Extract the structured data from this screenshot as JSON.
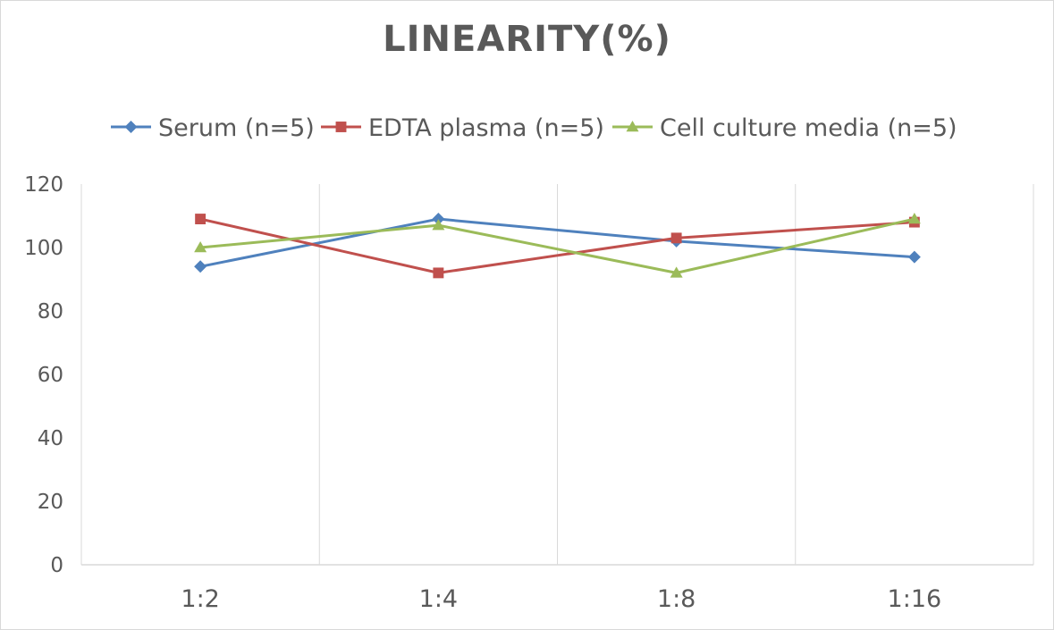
{
  "chart_data": {
    "type": "line",
    "title": "LINEARITY(%)",
    "xlabel": "",
    "ylabel": "",
    "categories": [
      "1:2",
      "1:4",
      "1:8",
      "1:16"
    ],
    "ylim": [
      0,
      120
    ],
    "yticks": [
      0,
      20,
      40,
      60,
      80,
      100,
      120
    ],
    "grid": "vertical",
    "legend_position": "top",
    "series": [
      {
        "name": "Serum (n=5)",
        "values": [
          94,
          109,
          102,
          97
        ],
        "color": "#4f81bd",
        "marker": "diamond"
      },
      {
        "name": "EDTA plasma (n=5)",
        "values": [
          109,
          92,
          103,
          108
        ],
        "color": "#c0504d",
        "marker": "square"
      },
      {
        "name": "Cell culture media (n=5)",
        "values": [
          100,
          107,
          92,
          109
        ],
        "color": "#9bbb59",
        "marker": "triangle"
      }
    ]
  }
}
